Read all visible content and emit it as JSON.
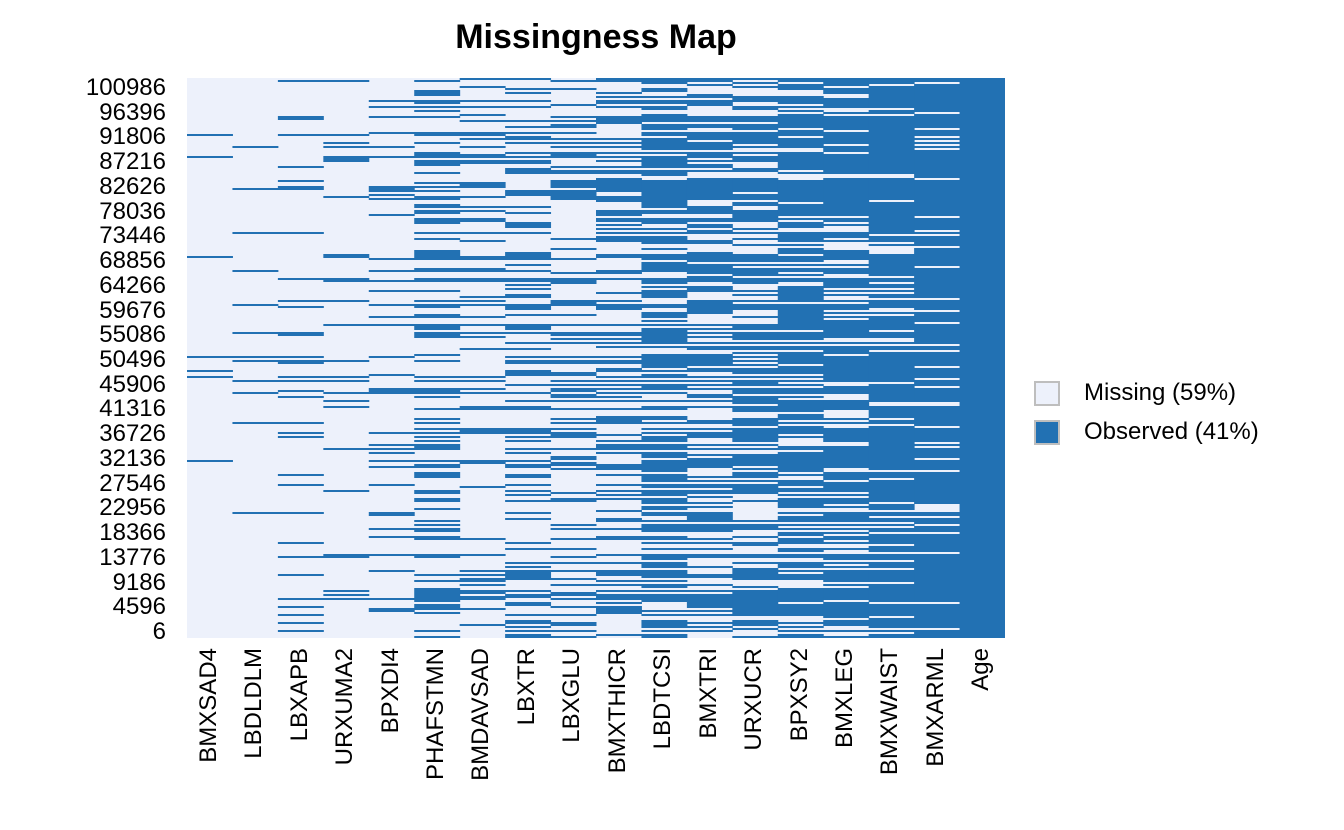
{
  "chart_data": {
    "type": "heatmap",
    "title": "Missingness Map",
    "columns": [
      "BMXSAD4",
      "LBDLDLM",
      "LBXAPB",
      "URXUMA2",
      "BPXDI4",
      "PHAFSTMN",
      "BMDAVSAD",
      "LBXTR",
      "LBXGLU",
      "BMXTHICR",
      "LBDTCSI",
      "BMXTRI",
      "URXUCR",
      "BPXSY2",
      "BMXLEG",
      "BMXWAIST",
      "BMXARML",
      "Age"
    ],
    "observed_fraction": [
      0.04,
      0.07,
      0.09,
      0.07,
      0.11,
      0.3,
      0.22,
      0.3,
      0.3,
      0.38,
      0.58,
      0.5,
      0.55,
      0.65,
      0.65,
      0.8,
      0.85,
      1.0
    ],
    "y_ticks": [
      100986,
      96396,
      91806,
      87216,
      82626,
      78036,
      73446,
      68856,
      64266,
      59676,
      55086,
      50496,
      45906,
      41316,
      36726,
      32136,
      27546,
      22956,
      18366,
      13776,
      9186,
      4596,
      6
    ],
    "y_axis_range": [
      6,
      100986
    ],
    "grid": false,
    "colors": {
      "missing": "#EDF1FB",
      "observed": "#2271B3",
      "legend_swatch_border": "#BEBEBE",
      "text": "#000000"
    },
    "missing_pct": 59,
    "observed_pct": 41,
    "legend": {
      "position": "right",
      "items": [
        {
          "label": "Missing (59%)",
          "color_key": "missing"
        },
        {
          "label": "Observed (41%)",
          "color_key": "observed"
        }
      ]
    }
  }
}
